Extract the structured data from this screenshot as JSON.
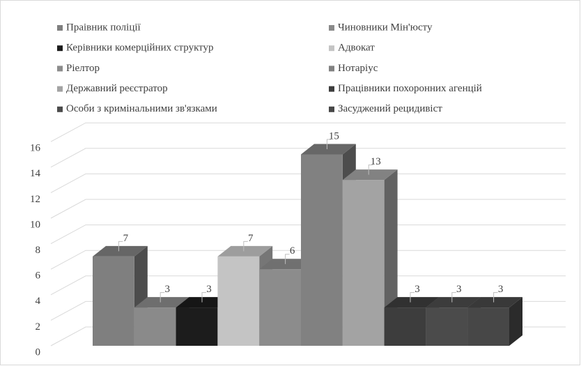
{
  "chart_data": {
    "type": "bar",
    "series": [
      {
        "name": "Праівник поліції",
        "color": "#7f7f7f",
        "values": [
          7
        ]
      },
      {
        "name": "Чиновники Мін'юсту",
        "color": "#8a8a8a",
        "values": [
          3
        ]
      },
      {
        "name": "Керівники комерційних структур",
        "color": "#1c1c1c",
        "values": [
          3
        ]
      },
      {
        "name": "Адвокат",
        "color": "#c4c4c4",
        "values": [
          7
        ]
      },
      {
        "name": "Ріелтор",
        "color": "#8c8c8c",
        "values": [
          6
        ]
      },
      {
        "name": "Нотаріус",
        "color": "#818181",
        "values": [
          15
        ]
      },
      {
        "name": "Державний реєстратор",
        "color": "#a3a3a3",
        "values": [
          13
        ]
      },
      {
        "name": "Працівники похоронних агенцій",
        "color": "#3d3d3d",
        "values": [
          3
        ]
      },
      {
        "name": "Особи з кримінальними зв'язками",
        "color": "#4b4b4b",
        "values": [
          3
        ]
      },
      {
        "name": "Засуджений рецидивіст",
        "color": "#474747",
        "values": [
          3
        ]
      }
    ],
    "ylim": [
      0,
      16
    ],
    "yticks": [
      0,
      2,
      4,
      6,
      8,
      10,
      12,
      14,
      16
    ],
    "grid": true,
    "legend": "top"
  }
}
